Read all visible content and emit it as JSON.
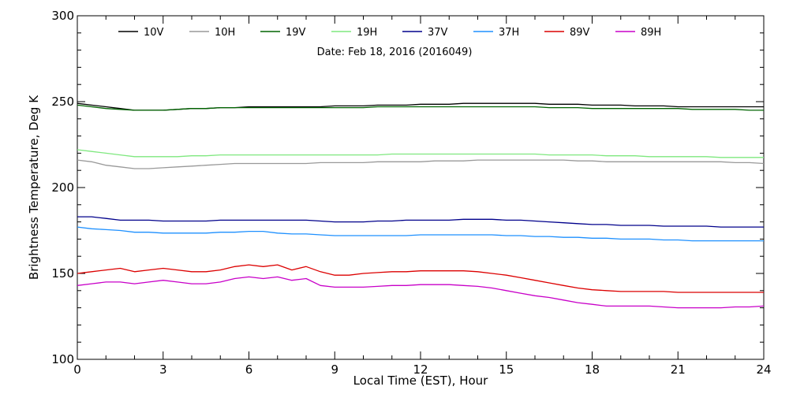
{
  "chart_data": {
    "type": "line",
    "subtitle": "Date: Feb 18, 2016 (2016049)",
    "xlabel": "Local Time (EST), Hour",
    "ylabel": "Brightness Temperature, Deg K",
    "xlim": [
      0,
      24
    ],
    "ylim": [
      100,
      300
    ],
    "xticks": [
      0,
      3,
      6,
      9,
      12,
      15,
      18,
      21,
      24
    ],
    "yticks": [
      100,
      150,
      200,
      250,
      300
    ],
    "grid": false,
    "legend_position": "top",
    "x": [
      0,
      0.5,
      1,
      1.5,
      2,
      2.5,
      3,
      3.5,
      4,
      4.5,
      5,
      5.5,
      6,
      6.5,
      7,
      7.5,
      8,
      8.5,
      9,
      9.5,
      10,
      10.5,
      11,
      11.5,
      12,
      12.5,
      13,
      13.5,
      14,
      14.5,
      15,
      15.5,
      16,
      16.5,
      17,
      17.5,
      18,
      18.5,
      19,
      19.5,
      20,
      20.5,
      21,
      21.5,
      22,
      22.5,
      23,
      23.5,
      24
    ],
    "series": [
      {
        "name": "10V",
        "color": "#000000",
        "values": [
          249,
          248,
          247,
          246,
          245,
          245,
          245,
          245.5,
          246,
          246,
          246.5,
          246.5,
          247,
          247,
          247,
          247,
          247,
          247,
          247.5,
          247.5,
          247.5,
          248,
          248,
          248,
          248.5,
          248.5,
          248.5,
          249,
          249,
          249,
          249,
          249,
          249,
          248.5,
          248.5,
          248.5,
          248,
          248,
          248,
          247.5,
          247.5,
          247.5,
          247,
          247,
          247,
          247,
          247,
          247,
          247
        ]
      },
      {
        "name": "10H",
        "color": "#999999",
        "values": [
          216,
          215,
          213,
          212,
          211,
          211,
          211.5,
          212,
          212.5,
          213,
          213.5,
          214,
          214,
          214,
          214,
          214,
          214,
          214.5,
          214.5,
          214.5,
          214.5,
          215,
          215,
          215,
          215,
          215.5,
          215.5,
          215.5,
          216,
          216,
          216,
          216,
          216,
          216,
          216,
          215.5,
          215.5,
          215,
          215,
          215,
          215,
          215,
          215,
          215,
          215,
          215,
          214.5,
          214.5,
          214
        ]
      },
      {
        "name": "19V",
        "color": "#006400",
        "values": [
          248,
          247,
          246,
          245.5,
          245,
          245,
          245,
          245.5,
          246,
          246,
          246.5,
          246.5,
          246.5,
          246.5,
          246.5,
          246.5,
          246.5,
          246.5,
          246.5,
          246.5,
          246.5,
          247,
          247,
          247,
          247,
          247,
          247,
          247,
          247,
          247,
          247,
          247,
          247,
          246.5,
          246.5,
          246.5,
          246,
          246,
          246,
          246,
          246,
          246,
          246,
          245.5,
          245.5,
          245.5,
          245.5,
          245,
          245
        ]
      },
      {
        "name": "19H",
        "color": "#7fe87f",
        "values": [
          222,
          221,
          220,
          219,
          218,
          218,
          218,
          218,
          218.5,
          218.5,
          219,
          219,
          219,
          219,
          219,
          219,
          219,
          219,
          219,
          219,
          219,
          219,
          219.5,
          219.5,
          219.5,
          219.5,
          219.5,
          219.5,
          219.5,
          219.5,
          219.5,
          219.5,
          219.5,
          219,
          219,
          219,
          219,
          218.5,
          218.5,
          218.5,
          218,
          218,
          218,
          218,
          218,
          217.5,
          217.5,
          217.5,
          217.5
        ]
      },
      {
        "name": "37V",
        "color": "#00008b",
        "values": [
          183,
          183,
          182,
          181,
          181,
          181,
          180.5,
          180.5,
          180.5,
          180.5,
          181,
          181,
          181,
          181,
          181,
          181,
          181,
          180.5,
          180,
          180,
          180,
          180.5,
          180.5,
          181,
          181,
          181,
          181,
          181.5,
          181.5,
          181.5,
          181,
          181,
          180.5,
          180,
          179.5,
          179,
          178.5,
          178.5,
          178,
          178,
          178,
          177.5,
          177.5,
          177.5,
          177.5,
          177,
          177,
          177,
          177
        ]
      },
      {
        "name": "37H",
        "color": "#1e90ff",
        "values": [
          177,
          176,
          175.5,
          175,
          174,
          174,
          173.5,
          173.5,
          173.5,
          173.5,
          174,
          174,
          174.5,
          174.5,
          173.5,
          173,
          173,
          172.5,
          172,
          172,
          172,
          172,
          172,
          172,
          172.5,
          172.5,
          172.5,
          172.5,
          172.5,
          172.5,
          172,
          172,
          171.5,
          171.5,
          171,
          171,
          170.5,
          170.5,
          170,
          170,
          170,
          169.5,
          169.5,
          169,
          169,
          169,
          169,
          169,
          169
        ]
      },
      {
        "name": "89V",
        "color": "#dc0000",
        "values": [
          150,
          151,
          152,
          153,
          151,
          152,
          153,
          152,
          151,
          151,
          152,
          154,
          155,
          154,
          155,
          152,
          154,
          151,
          149,
          149,
          150,
          150.5,
          151,
          151,
          151.5,
          151.5,
          151.5,
          151.5,
          151,
          150,
          149,
          147.5,
          146,
          144.5,
          143,
          141.5,
          140.5,
          140,
          139.5,
          139.5,
          139.5,
          139.5,
          139,
          139,
          139,
          139,
          139,
          139,
          139
        ]
      },
      {
        "name": "89H",
        "color": "#c800c8",
        "values": [
          143,
          144,
          145,
          145,
          144,
          145,
          146,
          145,
          144,
          144,
          145,
          147,
          148,
          147,
          148,
          146,
          147,
          143,
          142,
          142,
          142,
          142.5,
          143,
          143,
          143.5,
          143.5,
          143.5,
          143,
          142.5,
          141.5,
          140,
          138.5,
          137,
          136,
          134.5,
          133,
          132,
          131,
          131,
          131,
          131,
          130.5,
          130,
          130,
          130,
          130,
          130.5,
          130.5,
          131
        ]
      }
    ]
  }
}
